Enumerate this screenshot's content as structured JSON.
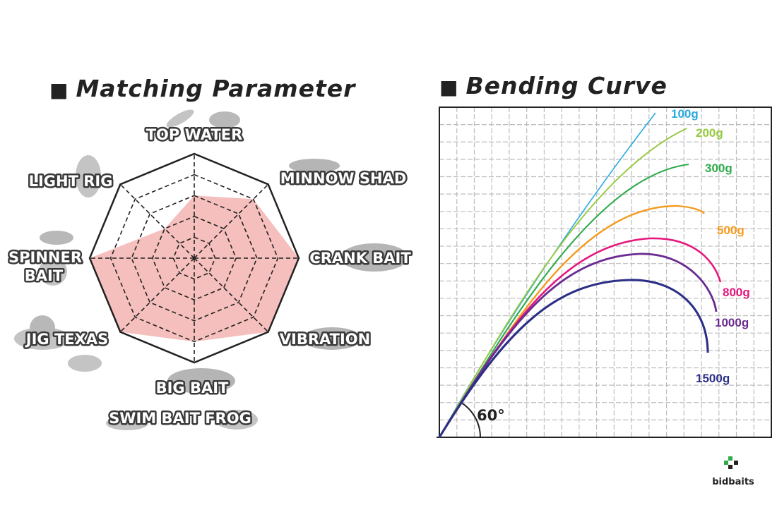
{
  "left_title": "Matching Parameter",
  "right_title": "Bending Curve",
  "title_square": "■",
  "chart_data": [
    {
      "type": "radar",
      "title": "Matching Parameter",
      "axes": [
        "TOP WATER",
        "MINNOW SHAD",
        "CRANK BAIT",
        "VIBRATION",
        "BIG BAIT / SWIM BAIT FROG",
        "JIG TEXAS",
        "SPINNER BAIT",
        "LIGHT RIG"
      ],
      "labels": {
        "top_water": "TOP WATER",
        "minnow_shad": "MINNOW SHAD",
        "crank_bait": "CRANK BAIT",
        "vibration": "VIBRATION",
        "big_bait": "BIG BAIT",
        "swim_bait_frog": "SWIM BAIT  FROG",
        "jig_texas": "JIG  TEXAS",
        "spinner": "SPINNER",
        "bait": "BAIT",
        "light_rig": "LIGHT RIG"
      },
      "scale_max": 5,
      "levels": 5,
      "values": [
        3,
        4,
        5,
        5,
        4,
        5,
        5,
        2
      ],
      "fill_color": "#f4b8b6",
      "grid_color": "#222222"
    },
    {
      "type": "line",
      "title": "Bending Curve",
      "angle_label": "60°",
      "series": [
        {
          "name": "100g",
          "color": "#29a9e1"
        },
        {
          "name": "200g",
          "color": "#95c93d"
        },
        {
          "name": "300g",
          "color": "#2eaa4a"
        },
        {
          "name": "500g",
          "color": "#f59a1b"
        },
        {
          "name": "800g",
          "color": "#e5177e"
        },
        {
          "name": "1000g",
          "color": "#6a2c91"
        },
        {
          "name": "1500g",
          "color": "#2b2f86"
        }
      ]
    }
  ],
  "logo": {
    "text": "bidbaits",
    "color": "#2eaa4a"
  }
}
